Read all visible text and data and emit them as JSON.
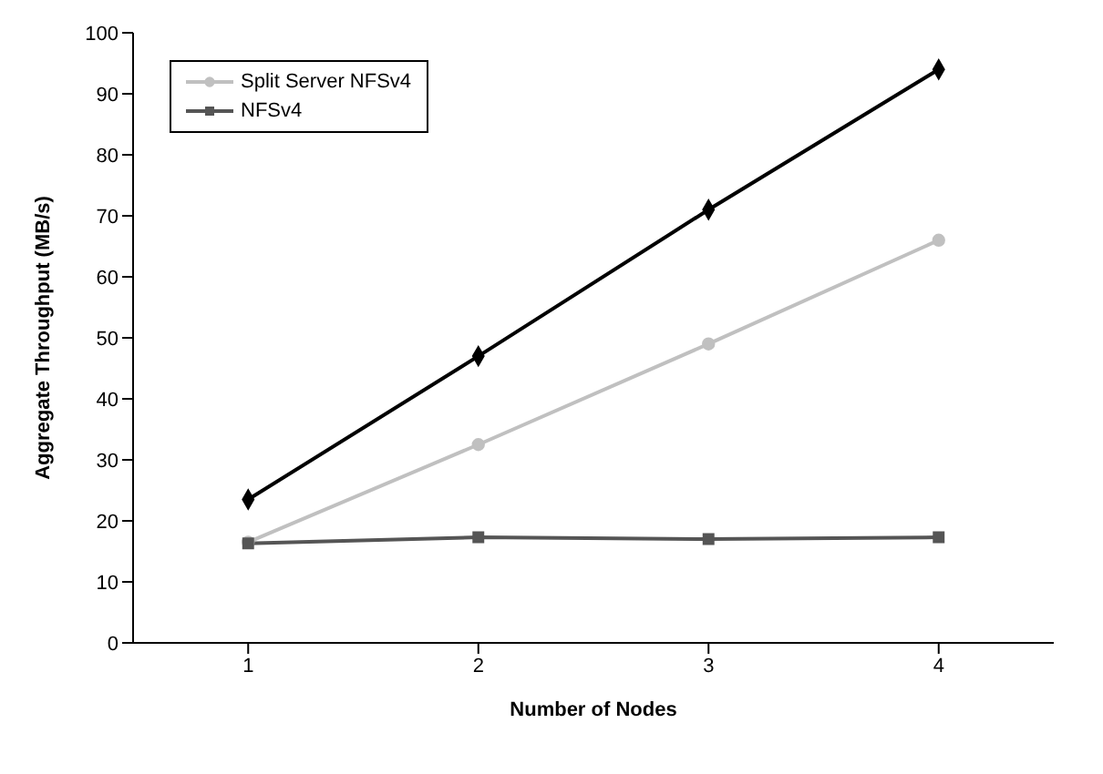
{
  "chart_data": {
    "type": "line",
    "xlabel": "Number of Nodes",
    "ylabel": "Aggregate Throughput (MB/s)",
    "categories": [
      "1",
      "2",
      "3",
      "4"
    ],
    "series": [
      {
        "color": "#000000",
        "marker": "diamond",
        "values": [
          23.5,
          47,
          71,
          94
        ]
      },
      {
        "name": "Split Server NFSv4",
        "color": "#c0c0c0",
        "marker": "circle",
        "values": [
          16.5,
          32.5,
          49,
          66
        ]
      },
      {
        "name": "NFSv4",
        "color": "#555555",
        "marker": "square",
        "values": [
          16.3,
          17.3,
          17,
          17.3
        ]
      }
    ],
    "ylim": [
      0,
      100
    ],
    "yticks": [
      0,
      10,
      20,
      30,
      40,
      50,
      60,
      70,
      80,
      90,
      100
    ],
    "legend": "top left",
    "line_style": "solid"
  }
}
